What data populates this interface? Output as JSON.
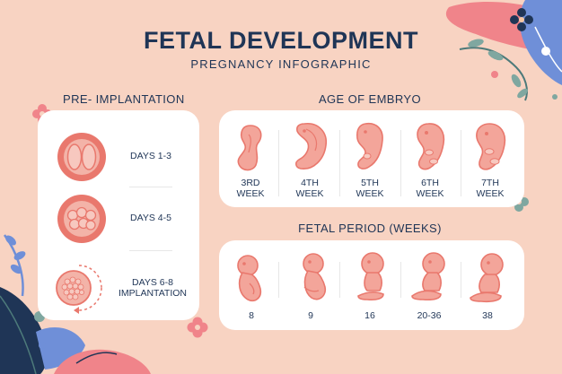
{
  "header": {
    "title": "FETAL DEVELOPMENT",
    "subtitle": "PREGNANCY INFOGRAPHIC"
  },
  "pre_implantation": {
    "heading": "PRE- IMPLANTATION",
    "items": [
      {
        "line1": "DAYS 1-3",
        "line2": ""
      },
      {
        "line1": "DAYS 4-5",
        "line2": ""
      },
      {
        "line1": "DAYS 6-8",
        "line2": "IMPLANTATION"
      }
    ]
  },
  "embryo": {
    "heading": "AGE OF EMBRYO",
    "items": [
      {
        "line1": "3RD",
        "line2": "WEEK"
      },
      {
        "line1": "4TH",
        "line2": "WEEK"
      },
      {
        "line1": "5TH",
        "line2": "WEEK"
      },
      {
        "line1": "6TH",
        "line2": "WEEK"
      },
      {
        "line1": "7TH",
        "line2": "WEEK"
      }
    ]
  },
  "fetal": {
    "heading": "FETAL PERIOD (WEEKS)",
    "items": [
      "8",
      "9",
      "16",
      "20-36",
      "38"
    ]
  },
  "colors": {
    "background": "#f8d3c2",
    "navy": "#1f3556",
    "coral": "#e9786d",
    "skin": "#f3a59a",
    "card": "#ffffff"
  }
}
